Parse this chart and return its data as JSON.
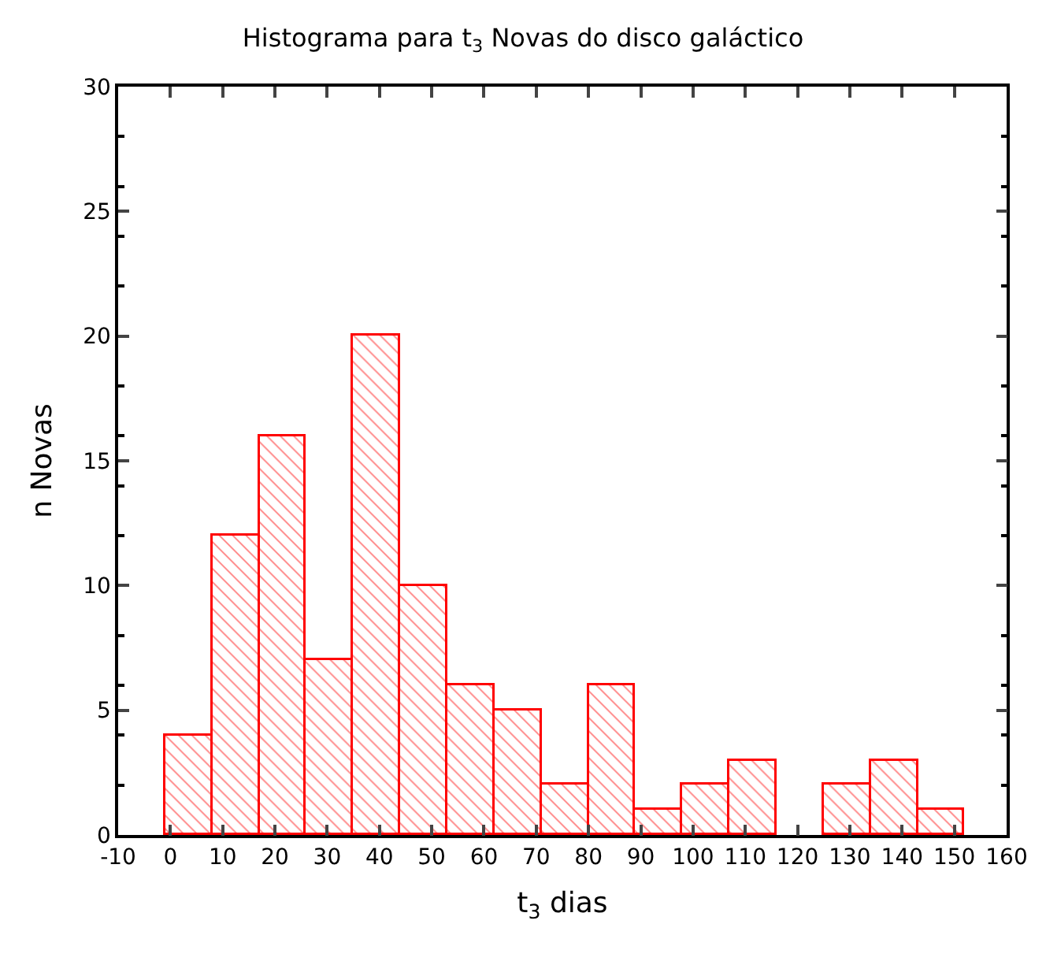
{
  "chart_data": {
    "type": "histogram",
    "title": "Histograma para t$_{3}$ Novas do disco galáctico",
    "xlabel": "t$_{3}$ dias",
    "ylabel": "n Novas",
    "bins": [
      -1,
      8,
      17,
      26,
      35,
      44,
      53,
      62,
      71,
      80,
      89,
      98,
      107,
      116,
      125,
      134,
      143,
      152
    ],
    "values": [
      4,
      12,
      16,
      7,
      20,
      10,
      6,
      5,
      2,
      6,
      1,
      2,
      3,
      0,
      2,
      3,
      1
    ],
    "color": "#ff0000",
    "xlim": [
      -10,
      160
    ],
    "xticks": [
      -10,
      0,
      10,
      20,
      30,
      40,
      50,
      60,
      70,
      80,
      90,
      100,
      110,
      120,
      130,
      140,
      150,
      160
    ],
    "ylim": [
      0,
      30
    ],
    "yticks": [
      0,
      5,
      10,
      15,
      20,
      25,
      30
    ]
  }
}
